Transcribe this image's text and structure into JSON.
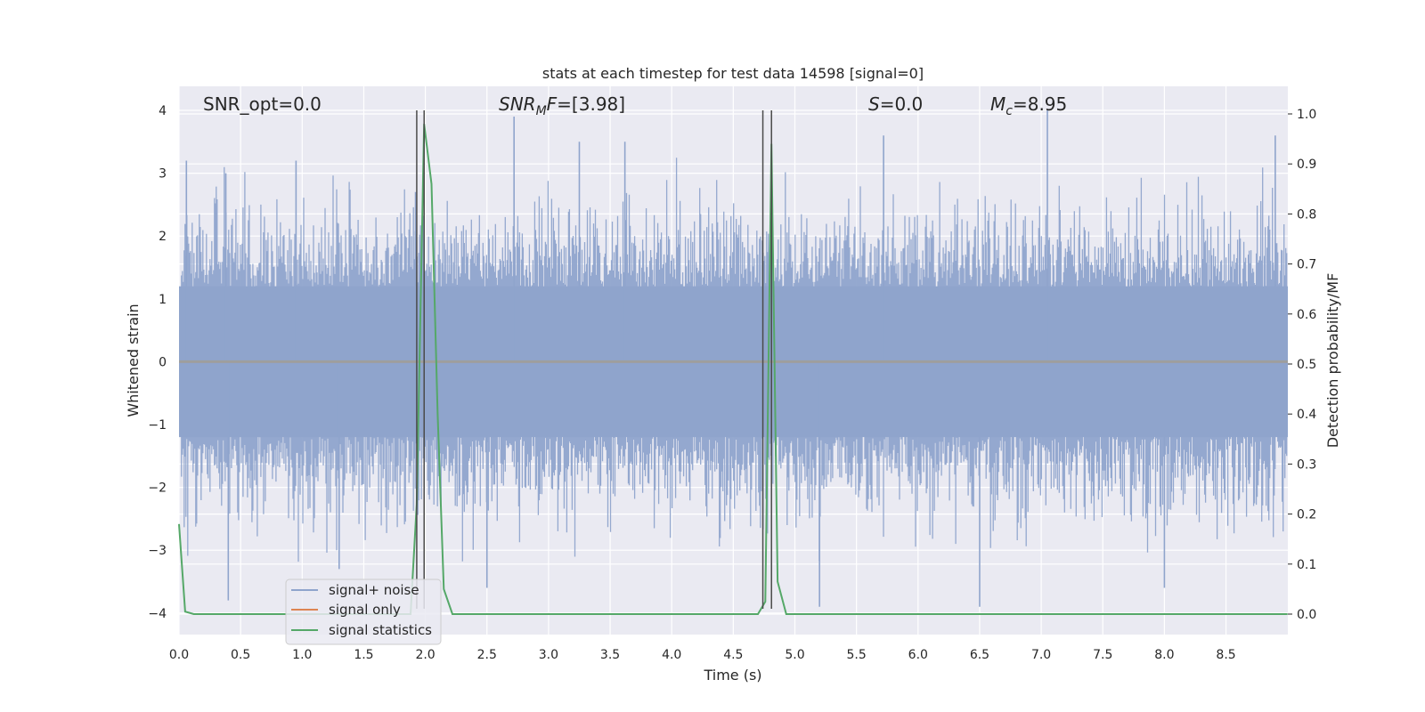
{
  "chart_data": {
    "type": "line",
    "title": "stats at each timestep for test data 14598 [signal=0]",
    "xlabel": "Time (s)",
    "ylabel": "Whitened strain",
    "ylabel_right": "Detection probability/MF",
    "xlim": [
      0,
      9
    ],
    "ylim": [
      -4.3,
      4.4
    ],
    "ylim_right": [
      -0.05,
      1.04
    ],
    "x_ticks": [
      "0.0",
      "0.5",
      "1.0",
      "1.5",
      "2.0",
      "2.5",
      "3.0",
      "3.5",
      "4.0",
      "4.5",
      "5.0",
      "5.5",
      "6.0",
      "6.5",
      "7.0",
      "7.5",
      "8.0",
      "8.5"
    ],
    "y_ticks": [
      "4",
      "3",
      "2",
      "1",
      "0",
      "−1",
      "−2",
      "−3",
      "−4"
    ],
    "y_ticks_right": [
      "1.0",
      "0.9",
      "0.8",
      "0.7",
      "0.6",
      "0.5",
      "0.4",
      "0.3",
      "0.2",
      "0.1",
      "0.0"
    ],
    "grid": true,
    "legend_position": "lower-left",
    "annotations": {
      "snr_opt": "SNR_opt=0.0",
      "snr_mf_main": "SNR",
      "snr_mf_sub": "M",
      "snr_mf_rest": "F=[3.98]",
      "s_main": "S",
      "s_rest": "=0.0",
      "mc_main": "M",
      "mc_sub": "c",
      "mc_rest": "=8.95"
    },
    "vertical_lines_x": [
      1.93,
      1.99,
      4.74,
      4.81
    ],
    "series": [
      {
        "name": "signal+ noise",
        "axis": "left",
        "color": "#8fa4cc",
        "description_of_envelope": "dense whitened noise, mostly within ±2, peaks near ±3.8",
        "peaks": [
          {
            "x": 0.06,
            "y": 3.2
          },
          {
            "x": 0.38,
            "y": 3.0
          },
          {
            "x": 0.95,
            "y": 3.2
          },
          {
            "x": 1.92,
            "y": 2.7
          },
          {
            "x": 2.72,
            "y": 3.9
          },
          {
            "x": 3.25,
            "y": 3.5
          },
          {
            "x": 3.62,
            "y": 3.5
          },
          {
            "x": 5.72,
            "y": 3.6
          },
          {
            "x": 7.05,
            "y": 4.0
          },
          {
            "x": 8.9,
            "y": 3.6
          },
          {
            "x": 0.4,
            "y": -3.8
          },
          {
            "x": 1.3,
            "y": -3.3
          },
          {
            "x": 2.5,
            "y": -3.6
          },
          {
            "x": 5.2,
            "y": -3.9
          },
          {
            "x": 6.5,
            "y": -3.9
          },
          {
            "x": 8.0,
            "y": -3.6
          }
        ]
      },
      {
        "name": "signal only",
        "axis": "left",
        "color": "#dd8452",
        "x": [
          0,
          9
        ],
        "y": [
          0,
          0
        ]
      },
      {
        "name": "signal statistics",
        "axis": "right",
        "color": "#55a868",
        "x": [
          0.0,
          0.05,
          0.12,
          1.88,
          1.93,
          1.99,
          2.05,
          2.1,
          2.15,
          2.22,
          4.7,
          4.76,
          4.81,
          4.86,
          4.93,
          9.0
        ],
        "y": [
          0.18,
          0.005,
          0.0,
          0.0,
          0.22,
          0.98,
          0.86,
          0.4,
          0.05,
          0.0,
          0.0,
          0.025,
          0.94,
          0.065,
          0.0,
          0.0
        ]
      }
    ]
  }
}
